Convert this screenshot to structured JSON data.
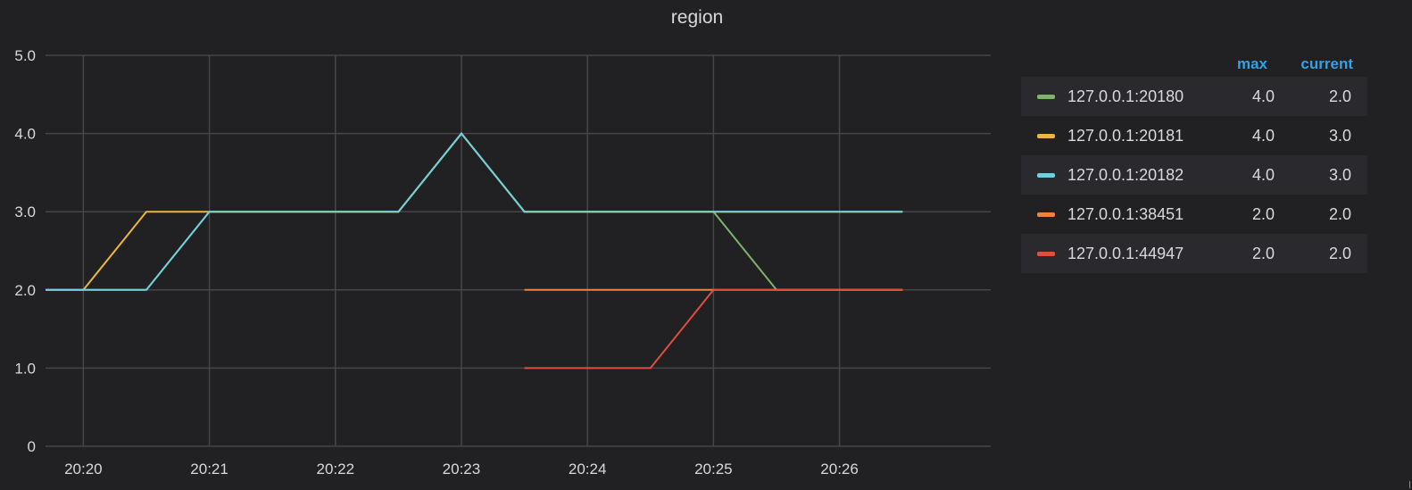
{
  "panel": {
    "title": "region"
  },
  "legend": {
    "headers": {
      "max": "max",
      "current": "current"
    },
    "rows": [
      {
        "name": "127.0.0.1:20180",
        "max": "4.0",
        "current": "2.0",
        "color": "#7eb26d"
      },
      {
        "name": "127.0.0.1:20181",
        "max": "4.0",
        "current": "3.0",
        "color": "#eab839"
      },
      {
        "name": "127.0.0.1:20182",
        "max": "4.0",
        "current": "3.0",
        "color": "#6ed0e0"
      },
      {
        "name": "127.0.0.1:38451",
        "max": "2.0",
        "current": "2.0",
        "color": "#ef843c"
      },
      {
        "name": "127.0.0.1:44947",
        "max": "2.0",
        "current": "2.0",
        "color": "#e24d42"
      }
    ]
  },
  "chart_data": {
    "type": "line",
    "title": "region",
    "xlabel": "",
    "ylabel": "",
    "xlim": [
      "20:19:42",
      "20:27:12"
    ],
    "ylim": [
      0,
      5
    ],
    "x_ticks": [
      "20:20",
      "20:21",
      "20:22",
      "20:23",
      "20:24",
      "20:25",
      "20:26"
    ],
    "y_ticks": [
      "0",
      "1.0",
      "2.0",
      "3.0",
      "4.0",
      "5.0"
    ],
    "grid": true,
    "legend_position": "right",
    "series": [
      {
        "name": "127.0.0.1:20180",
        "color": "#7eb26d",
        "points": [
          [
            "20:19:42",
            2
          ],
          [
            "20:20:00",
            2
          ],
          [
            "20:20:30",
            2
          ],
          [
            "20:21:00",
            3
          ],
          [
            "20:22:30",
            3
          ],
          [
            "20:23:00",
            4
          ],
          [
            "20:23:30",
            3
          ],
          [
            "20:25:00",
            3
          ],
          [
            "20:25:30",
            2
          ],
          [
            "20:26:30",
            2
          ]
        ]
      },
      {
        "name": "127.0.0.1:20181",
        "color": "#eab839",
        "points": [
          [
            "20:19:42",
            2
          ],
          [
            "20:20:00",
            2
          ],
          [
            "20:20:30",
            3
          ],
          [
            "20:21:00",
            3
          ],
          [
            "20:22:30",
            3
          ],
          [
            "20:23:00",
            4
          ],
          [
            "20:23:30",
            3
          ],
          [
            "20:26:30",
            3
          ]
        ]
      },
      {
        "name": "127.0.0.1:20182",
        "color": "#6ed0e0",
        "points": [
          [
            "20:19:42",
            2
          ],
          [
            "20:20:00",
            2
          ],
          [
            "20:20:30",
            2
          ],
          [
            "20:21:00",
            3
          ],
          [
            "20:22:30",
            3
          ],
          [
            "20:23:00",
            4
          ],
          [
            "20:23:30",
            3
          ],
          [
            "20:26:30",
            3
          ]
        ]
      },
      {
        "name": "127.0.0.1:38451",
        "color": "#ef843c",
        "points": [
          [
            "20:23:30",
            2
          ],
          [
            "20:26:30",
            2
          ]
        ]
      },
      {
        "name": "127.0.0.1:44947",
        "color": "#e24d42",
        "points": [
          [
            "20:23:30",
            1
          ],
          [
            "20:24:30",
            1
          ],
          [
            "20:25:00",
            2
          ],
          [
            "20:26:30",
            2
          ]
        ]
      }
    ]
  }
}
